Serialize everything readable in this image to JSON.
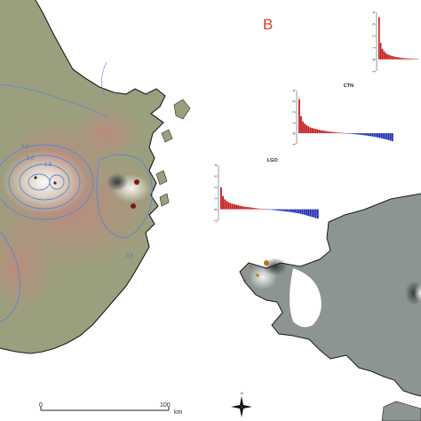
{
  "panel_letter": "B",
  "colors": {
    "positive_bar": "#c41818",
    "negative_bar": "#1c2bb8",
    "contour": "#5a86d0",
    "land_west": "#9c9f7e",
    "land_east": "#8c9592",
    "relief": "#c08a80",
    "sea": "#ffffff",
    "label_red": "#d83a2c"
  },
  "contour_labels": [
    "2.0",
    "1.5",
    "1.0",
    "0.5"
  ],
  "scale_bar": {
    "start": "0",
    "end": "100",
    "unit": "km"
  },
  "compass": {
    "north": "N"
  },
  "stations": [
    {
      "label": "",
      "ticks": [
        "4",
        "3",
        "2",
        "1",
        "0",
        "-1"
      ],
      "bars": [
        3.6,
        1.4,
        0.9,
        0.7,
        0.55,
        0.45,
        0.38,
        0.32,
        0.28,
        0.24,
        0.21,
        0.18,
        0.16,
        0.14,
        0.12,
        0.1,
        0.09,
        0.08,
        0.07,
        0.06,
        0.05,
        0.04,
        0.03,
        0.02
      ]
    },
    {
      "label": "CTN",
      "ticks": [
        "4",
        "3",
        "2",
        "1",
        "0",
        "-1"
      ],
      "bars": [
        3.2,
        1.6,
        1.1,
        0.9,
        0.75,
        0.65,
        0.55,
        0.5,
        0.45,
        0.4,
        0.36,
        0.32,
        0.28,
        0.25,
        0.22,
        0.19,
        0.16,
        0.14,
        0.12,
        0.1,
        0.08,
        0.06,
        0.05,
        0.04,
        0.03,
        0.02,
        0.01,
        -0.02,
        -0.04,
        -0.06,
        -0.08,
        -0.1,
        -0.12,
        -0.14,
        -0.16,
        -0.18,
        -0.2,
        -0.22,
        -0.25,
        -0.28,
        -0.3,
        -0.33,
        -0.36,
        -0.4,
        -0.44,
        -0.48,
        -0.52,
        -0.56,
        -0.6,
        -0.65,
        -0.7,
        -0.75
      ]
    },
    {
      "label": "LGO",
      "ticks": [
        "4",
        "3",
        "2",
        "1",
        "0",
        "-1"
      ],
      "bars": [
        2.0,
        1.2,
        0.9,
        0.75,
        0.65,
        0.55,
        0.5,
        0.45,
        0.4,
        0.36,
        0.32,
        0.28,
        0.25,
        0.22,
        0.2,
        0.18,
        0.15,
        0.13,
        0.11,
        0.09,
        0.07,
        0.05,
        0.03,
        0.02,
        0.01,
        -0.02,
        -0.04,
        -0.06,
        -0.08,
        -0.1,
        -0.12,
        -0.14,
        -0.16,
        -0.18,
        -0.2,
        -0.22,
        -0.24,
        -0.26,
        -0.29,
        -0.32,
        -0.35,
        -0.38,
        -0.42,
        -0.46,
        -0.5,
        -0.55,
        -0.6,
        -0.65,
        -0.7,
        -0.75,
        -0.8,
        -0.85
      ]
    }
  ]
}
